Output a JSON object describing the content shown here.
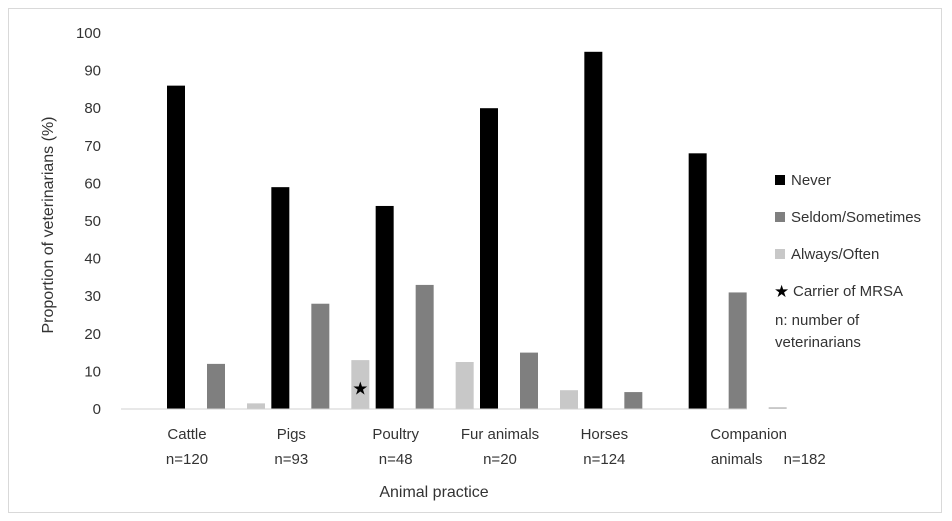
{
  "chart_data": {
    "type": "bar",
    "title": "",
    "xlabel": "Animal practice",
    "ylabel": "Proportion of veterinarians (%)",
    "ylim": [
      0,
      100
    ],
    "yticks": [
      0,
      10,
      20,
      30,
      40,
      50,
      60,
      70,
      80,
      90,
      100
    ],
    "grid": false,
    "legend_position": "right",
    "categories": [
      {
        "name": "Cattle",
        "n": "n=120"
      },
      {
        "name": "Pigs",
        "n": "n=93"
      },
      {
        "name": "Poultry",
        "n": "n=48"
      },
      {
        "name": "Fur animals",
        "n": "n=20"
      },
      {
        "name": "Horses",
        "n": "n=124"
      },
      {
        "name": "Companion animals",
        "line1": "Companion",
        "line2": "animals",
        "n": "n=182"
      }
    ],
    "series": [
      {
        "name": "Never",
        "color": "#000000",
        "values": [
          86,
          59,
          54,
          80,
          95,
          68
        ]
      },
      {
        "name": "Seldom/Sometimes",
        "color": "#7f7f7f",
        "values": [
          12,
          28,
          33,
          15,
          4.5,
          31
        ]
      },
      {
        "name": "Always/Often",
        "color": "#c8c8c8",
        "values": [
          1.5,
          13,
          12.5,
          5,
          0,
          0.5
        ]
      }
    ],
    "markers": [
      {
        "symbol": "★",
        "category": "Pigs",
        "series": "Always/Often",
        "value": 5.5,
        "label": "Carrier of MRSA"
      }
    ],
    "legend_note": [
      "n: number of",
      "veterinarians"
    ]
  }
}
